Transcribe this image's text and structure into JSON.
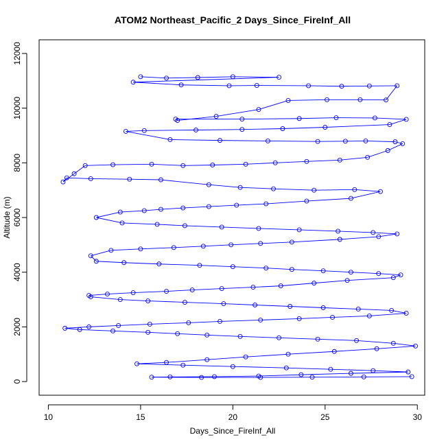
{
  "chart_data": {
    "type": "line",
    "title": "ATOM2 Northeast_Pacific_2 Days_Since_FireInf_All",
    "xlabel": "Days_Since_FireInf_All",
    "ylabel": "Altitude (m)",
    "xlim": [
      9.5,
      30.4
    ],
    "ylim": [
      -500,
      12500
    ],
    "xticks": [
      10,
      15,
      20,
      25,
      30
    ],
    "xtick_labels": [
      "10",
      "15",
      "20",
      "25",
      "30"
    ],
    "yticks": [
      0,
      2000,
      4000,
      6000,
      8000,
      10000,
      12000
    ],
    "ytick_labels": [
      "0",
      "2000",
      "4000",
      "6000",
      "8000",
      "10000",
      "12000"
    ],
    "grid": false,
    "series": [
      {
        "color": "#0000ff",
        "marker": "open-circle",
        "x": [
          15.0,
          16.4,
          18.1,
          20.0,
          22.5,
          14.6,
          17.2,
          19.8,
          21.3,
          24.1,
          25.9,
          27.4,
          28.9,
          28.3,
          26.9,
          25.1,
          23.0,
          21.4,
          19.1,
          17.0,
          16.9,
          20.5,
          23.6,
          25.6,
          27.7,
          29.4,
          28.5,
          25.0,
          22.7,
          20.5,
          18.0,
          15.2,
          14.2,
          16.6,
          19.3,
          21.9,
          24.6,
          26.1,
          27.2,
          28.8,
          29.2,
          28.4,
          27.3,
          25.8,
          24.0,
          22.3,
          20.7,
          18.9,
          17.3,
          15.6,
          13.5,
          12.0,
          11.4,
          10.8,
          11.0,
          12.3,
          14.4,
          16.1,
          18.7,
          20.4,
          22.2,
          24.4,
          26.6,
          28.0,
          26.4,
          24.0,
          21.8,
          20.2,
          18.7,
          17.3,
          16.1,
          15.2,
          13.9,
          12.6,
          14.0,
          15.9,
          17.4,
          19.4,
          21.4,
          23.6,
          25.7,
          27.6,
          28.9,
          27.9,
          25.8,
          23.2,
          21.5,
          19.9,
          18.4,
          16.8,
          15.0,
          13.4,
          12.3,
          12.6,
          14.1,
          16.0,
          18.2,
          20.0,
          21.8,
          23.2,
          24.9,
          26.4,
          27.9,
          29.1,
          28.7,
          26.2,
          24.4,
          22.6,
          21.1,
          19.4,
          17.8,
          16.4,
          14.6,
          13.2,
          12.2,
          12.3,
          13.9,
          15.4,
          17.4,
          19.5,
          21.2,
          23.1,
          24.9,
          26.8,
          28.6,
          29.4,
          27.4,
          25.4,
          23.6,
          21.5,
          19.3,
          17.6,
          15.5,
          13.8,
          12.2,
          10.9,
          11.7,
          13.5,
          15.4,
          17.0,
          18.6,
          20.4,
          22.5,
          24.6,
          26.7,
          28.7,
          29.9,
          27.8,
          25.5,
          23.0,
          20.7,
          18.6,
          16.4,
          14.8,
          17.3,
          20.0,
          22.9,
          25.3,
          27.6,
          29.5,
          26.4,
          23.7,
          21.4,
          19.0,
          16.6,
          15.6,
          18.3,
          21.5,
          24.3,
          27.1,
          29.7
        ],
        "y": [
          11150,
          11100,
          11120,
          11150,
          11130,
          10950,
          10850,
          10820,
          10830,
          10820,
          10800,
          10810,
          10820,
          10300,
          10310,
          10310,
          10280,
          9950,
          9700,
          9550,
          9600,
          9600,
          9620,
          9650,
          9640,
          9590,
          9400,
          9300,
          9250,
          9220,
          9200,
          9180,
          9150,
          8850,
          8820,
          8800,
          8780,
          8790,
          8800,
          8770,
          8700,
          8450,
          8200,
          8100,
          8050,
          8000,
          7950,
          7920,
          7900,
          7950,
          7930,
          7900,
          7600,
          7300,
          7450,
          7420,
          7400,
          7380,
          7200,
          7100,
          7050,
          7000,
          7020,
          6950,
          6700,
          6600,
          6500,
          6450,
          6400,
          6350,
          6300,
          6250,
          6200,
          6000,
          5800,
          5750,
          5700,
          5650,
          5600,
          5550,
          5500,
          5450,
          5400,
          5300,
          5200,
          5100,
          5050,
          5000,
          4950,
          4900,
          4850,
          4800,
          4600,
          4400,
          4350,
          4300,
          4250,
          4200,
          4150,
          4100,
          4050,
          4000,
          3950,
          3900,
          3800,
          3700,
          3600,
          3500,
          3450,
          3400,
          3350,
          3300,
          3250,
          3200,
          3150,
          3100,
          3000,
          2950,
          2900,
          2850,
          2800,
          2750,
          2700,
          2650,
          2600,
          2500,
          2400,
          2350,
          2300,
          2250,
          2200,
          2150,
          2100,
          2050,
          2000,
          1950,
          1900,
          1850,
          1800,
          1750,
          1700,
          1650,
          1600,
          1550,
          1500,
          1400,
          1300,
          1200,
          1100,
          1000,
          900,
          800,
          700,
          650,
          600,
          550,
          500,
          450,
          400,
          350,
          300,
          250,
          200,
          180,
          170,
          160,
          150,
          150,
          160,
          170,
          180
        ]
      }
    ]
  }
}
